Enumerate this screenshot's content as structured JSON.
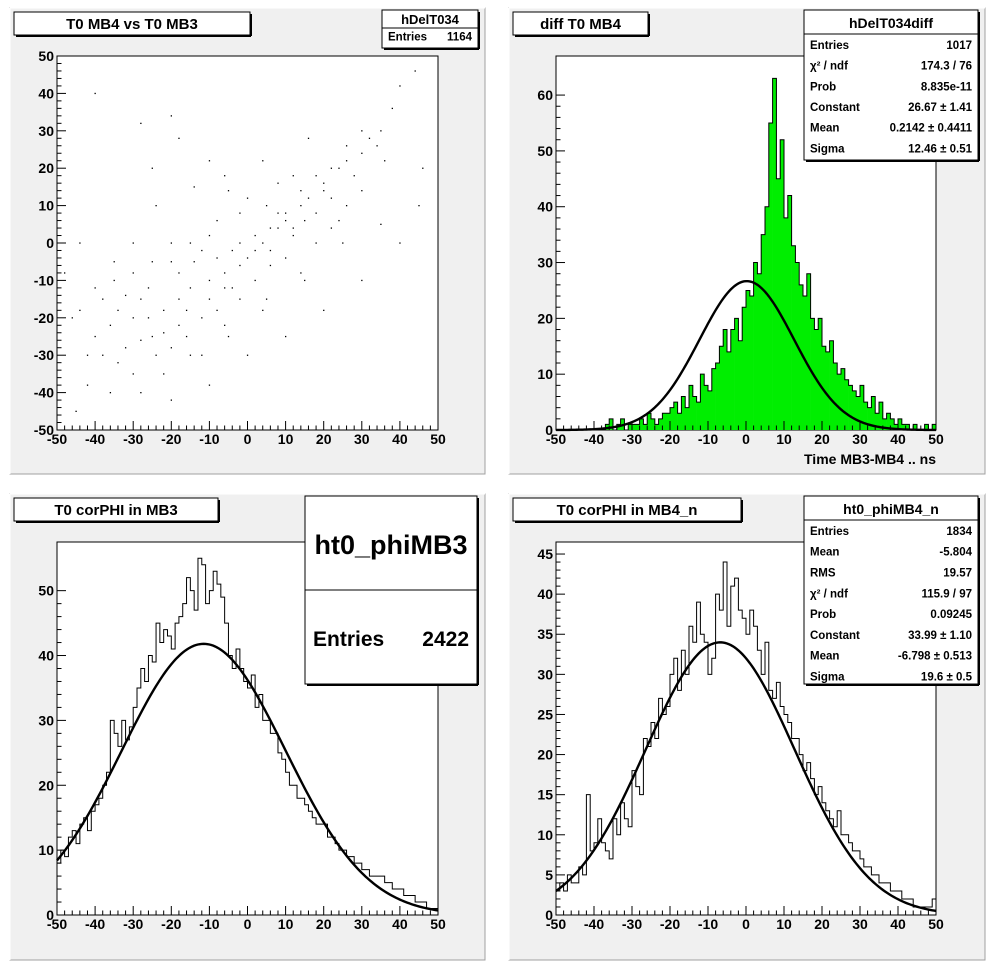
{
  "pads": [
    {
      "title": "T0 MB4 vs T0 MB3",
      "stats": {
        "title": "hDelT034",
        "rows": [
          {
            "label": "Entries",
            "value": "1164"
          }
        ]
      },
      "xlabel": "",
      "chart_data": {
        "type": "scatter",
        "title": "T0 MB4 vs T0 MB3",
        "xlim": [
          -50,
          50
        ],
        "ylim": [
          -50,
          50
        ],
        "xticks": [
          -50,
          -40,
          -30,
          -20,
          -10,
          0,
          10,
          20,
          30,
          40,
          50
        ],
        "yticks": [
          -50,
          -40,
          -30,
          -20,
          -10,
          0,
          10,
          20,
          30,
          40,
          50
        ],
        "xlabel": "",
        "ylabel": "",
        "points": [
          [
            -40,
            40
          ],
          [
            -28,
            32
          ],
          [
            -25,
            20
          ],
          [
            -20,
            34
          ],
          [
            -18,
            28
          ],
          [
            -10,
            22
          ],
          [
            -5,
            14
          ],
          [
            0,
            12
          ],
          [
            5,
            10
          ],
          [
            8,
            8
          ],
          [
            12,
            4
          ],
          [
            15,
            6
          ],
          [
            20,
            14
          ],
          [
            24,
            20
          ],
          [
            26,
            22
          ],
          [
            28,
            18
          ],
          [
            30,
            24
          ],
          [
            32,
            28
          ],
          [
            35,
            30
          ],
          [
            38,
            36
          ],
          [
            40,
            42
          ],
          [
            44,
            46
          ],
          [
            -35,
            -10
          ],
          [
            -30,
            -20
          ],
          [
            -30,
            -35
          ],
          [
            -28,
            -40
          ],
          [
            -25,
            -25
          ],
          [
            -22,
            -18
          ],
          [
            -20,
            -28
          ],
          [
            -18,
            -15
          ],
          [
            -15,
            -12
          ],
          [
            -12,
            -20
          ],
          [
            -10,
            -10
          ],
          [
            -8,
            -4
          ],
          [
            -6,
            -8
          ],
          [
            -4,
            -2
          ],
          [
            -2,
            0
          ],
          [
            0,
            -4
          ],
          [
            2,
            2
          ],
          [
            4,
            0
          ],
          [
            6,
            -6
          ],
          [
            8,
            4
          ],
          [
            10,
            8
          ],
          [
            12,
            2
          ],
          [
            14,
            10
          ],
          [
            16,
            12
          ],
          [
            18,
            8
          ],
          [
            20,
            16
          ],
          [
            22,
            12
          ],
          [
            24,
            6
          ],
          [
            -45,
            -45
          ],
          [
            -42,
            -38
          ],
          [
            -40,
            -25
          ],
          [
            -38,
            -30
          ],
          [
            -36,
            -22
          ],
          [
            -34,
            -18
          ],
          [
            -32,
            -28
          ],
          [
            -26,
            -12
          ],
          [
            -24,
            -30
          ],
          [
            -22,
            -35
          ],
          [
            -16,
            -25
          ],
          [
            -14,
            -5
          ],
          [
            -12,
            -30
          ],
          [
            -8,
            -18
          ],
          [
            -6,
            -22
          ],
          [
            -4,
            -12
          ],
          [
            -2,
            -15
          ],
          [
            2,
            -10
          ],
          [
            4,
            -18
          ],
          [
            6,
            -2
          ],
          [
            10,
            -4
          ],
          [
            14,
            -8
          ],
          [
            18,
            0
          ],
          [
            22,
            4
          ],
          [
            26,
            10
          ],
          [
            30,
            14
          ],
          [
            -20,
            -5
          ],
          [
            -18,
            -8
          ],
          [
            -15,
            0
          ],
          [
            -10,
            2
          ],
          [
            -30,
            -8
          ],
          [
            -28,
            -15
          ],
          [
            -44,
            0
          ],
          [
            -40,
            -12
          ],
          [
            -46,
            -20
          ],
          [
            -48,
            -8
          ],
          [
            -36,
            -40
          ],
          [
            -20,
            -42
          ],
          [
            -10,
            -38
          ],
          [
            0,
            -30
          ],
          [
            10,
            -25
          ],
          [
            20,
            -18
          ],
          [
            30,
            -10
          ],
          [
            40,
            0
          ],
          [
            46,
            20
          ],
          [
            45,
            10
          ],
          [
            35,
            5
          ],
          [
            -24,
            10
          ],
          [
            -14,
            15
          ],
          [
            -6,
            18
          ],
          [
            4,
            22
          ],
          [
            16,
            28
          ],
          [
            12,
            18
          ],
          [
            8,
            16
          ],
          [
            -2,
            8
          ],
          [
            -8,
            6
          ],
          [
            -12,
            -2
          ],
          [
            -18,
            -22
          ],
          [
            -26,
            -20
          ],
          [
            -32,
            -14
          ],
          [
            -38,
            -15
          ],
          [
            -42,
            -30
          ],
          [
            -34,
            -32
          ],
          [
            -28,
            -26
          ],
          [
            -22,
            -24
          ],
          [
            -16,
            -18
          ],
          [
            -10,
            -15
          ],
          [
            -6,
            -12
          ],
          [
            -2,
            -6
          ],
          [
            2,
            -2
          ],
          [
            6,
            4
          ],
          [
            10,
            6
          ],
          [
            14,
            14
          ],
          [
            18,
            18
          ],
          [
            22,
            20
          ],
          [
            26,
            26
          ],
          [
            30,
            30
          ],
          [
            34,
            26
          ],
          [
            36,
            22
          ],
          [
            -25,
            -5
          ],
          [
            -15,
            -30
          ],
          [
            -5,
            -25
          ],
          [
            5,
            -15
          ],
          [
            15,
            -10
          ],
          [
            25,
            0
          ],
          [
            -20,
            0
          ],
          [
            -30,
            0
          ],
          [
            -35,
            -5
          ],
          [
            -44,
            -18
          ]
        ],
        "point_count": 1164
      }
    },
    {
      "title": "diff T0 MB4",
      "stats": {
        "title": "hDelT034diff",
        "rows": [
          {
            "label": "Entries",
            "value": "1017"
          },
          {
            "label": "χ² / ndf",
            "value": "174.3 / 76"
          },
          {
            "label": "Prob",
            "value": "8.835e-11"
          },
          {
            "label": "Constant",
            "value": "26.67 ± 1.41"
          },
          {
            "label": "Mean",
            "value": "0.2142 ± 0.4411"
          },
          {
            "label": "Sigma",
            "value": "12.46 ± 0.51"
          }
        ]
      },
      "xlabel": "Time MB3-MB4  ..  ns",
      "chart_data": {
        "type": "bar",
        "title": "diff T0 MB4",
        "xlim": [
          -50,
          50
        ],
        "ylim": [
          0,
          67
        ],
        "xticks": [
          -50,
          -40,
          -30,
          -20,
          -10,
          0,
          10,
          20,
          30,
          40,
          50
        ],
        "yticks": [
          0,
          10,
          20,
          30,
          40,
          50,
          60
        ],
        "xlabel": "Time MB3-MB4  ..  ns",
        "ylabel": "",
        "bin_width": 1,
        "fill": "#00ee00",
        "values": [
          0,
          0,
          0,
          0,
          0,
          0,
          0,
          0,
          0,
          0,
          0,
          0,
          0,
          1,
          2,
          0,
          1,
          2,
          0,
          1,
          1,
          1,
          2,
          1,
          3,
          2,
          1,
          2,
          3,
          3,
          4,
          5,
          3,
          6,
          4,
          8,
          6,
          5,
          10,
          8,
          7,
          11,
          12,
          15,
          18,
          14,
          18,
          20,
          16,
          22,
          25,
          24,
          30,
          28,
          35,
          40,
          55,
          63,
          45,
          52,
          38,
          42,
          33,
          30,
          26,
          24,
          28,
          20,
          18,
          20,
          15,
          14,
          16,
          12,
          10,
          11,
          9,
          8,
          7,
          6,
          8,
          5,
          4,
          6,
          3,
          5,
          2,
          3,
          2,
          1,
          2,
          1,
          1,
          0,
          1,
          0,
          0,
          1,
          0,
          1
        ],
        "fit": {
          "constant": 26.67,
          "mean": 0.2142,
          "sigma": 12.46
        }
      }
    },
    {
      "title": "T0 corPHI in MB3",
      "stats": {
        "title": "ht0_phiMB3",
        "rows": [
          {
            "label": "Entries",
            "value": "2422"
          }
        ]
      },
      "xlabel": "",
      "chart_data": {
        "type": "bar",
        "title": "T0 corPHI in MB3",
        "xlim": [
          -50,
          50
        ],
        "ylim": [
          0,
          57.5
        ],
        "xticks": [
          -50,
          -40,
          -30,
          -20,
          -10,
          0,
          10,
          20,
          30,
          40,
          50
        ],
        "yticks": [
          0,
          10,
          20,
          30,
          40,
          50
        ],
        "xlabel": "",
        "ylabel": "",
        "bin_width": 1,
        "values": [
          8,
          10,
          9,
          12,
          13,
          11,
          14,
          15,
          13,
          16,
          17,
          18,
          20,
          22,
          30,
          28,
          26,
          30,
          27,
          29,
          32,
          35,
          38,
          36,
          40,
          39,
          45,
          42,
          44,
          43,
          41,
          45,
          46,
          48,
          52,
          50,
          47,
          55,
          54,
          48,
          50,
          53,
          51,
          49,
          45,
          40,
          38,
          41,
          38,
          36,
          35,
          37,
          32,
          34,
          30,
          30,
          28,
          28,
          25,
          24,
          22,
          20,
          20,
          18,
          18,
          17,
          16,
          15,
          14,
          14,
          14,
          12,
          12,
          11,
          10,
          10,
          9,
          9,
          8,
          8,
          7,
          7,
          6,
          6,
          6,
          6,
          5,
          5,
          4,
          4,
          4,
          3,
          3,
          3,
          2,
          2,
          2,
          1,
          1,
          1
        ],
        "fit": {
          "constant": 41.8,
          "mean": -11.5,
          "sigma": 21.5
        }
      }
    },
    {
      "title": "T0 corPHI in MB4_n",
      "stats": {
        "title": "ht0_phiMB4_n",
        "rows": [
          {
            "label": "Entries",
            "value": "1834"
          },
          {
            "label": "Mean",
            "value": "-5.804"
          },
          {
            "label": "RMS",
            "value": "19.57"
          },
          {
            "label": "χ² / ndf",
            "value": "115.9 / 97"
          },
          {
            "label": "Prob",
            "value": "0.09245"
          },
          {
            "label": "Constant",
            "value": "33.99 ± 1.10"
          },
          {
            "label": "Mean",
            "value": "-6.798 ± 0.513"
          },
          {
            "label": "Sigma",
            "value": "19.6 ± 0.5"
          }
        ]
      },
      "xlabel": "",
      "chart_data": {
        "type": "bar",
        "title": "T0 corPHI in MB4_n",
        "xlim": [
          -50,
          50
        ],
        "ylim": [
          0,
          46.5
        ],
        "xticks": [
          -50,
          -40,
          -30,
          -20,
          -10,
          0,
          10,
          20,
          30,
          40,
          50
        ],
        "yticks": [
          0,
          5,
          10,
          15,
          20,
          25,
          30,
          35,
          40,
          45
        ],
        "xlabel": "",
        "ylabel": "",
        "bin_width": 1,
        "values": [
          3,
          4,
          3,
          5,
          4,
          4,
          6,
          5,
          15,
          8,
          9,
          12,
          9,
          8,
          7,
          12,
          10,
          14,
          12,
          11,
          18,
          16,
          15,
          22,
          21,
          24,
          22,
          27,
          25,
          26,
          30,
          32,
          28,
          33,
          30,
          36,
          34,
          39,
          35,
          34,
          30,
          32,
          40,
          38,
          44,
          36,
          41,
          42,
          38,
          37,
          35,
          38,
          36,
          33,
          30,
          34,
          28,
          27,
          29,
          26,
          25,
          24,
          22,
          22,
          20,
          18,
          19,
          17,
          15,
          16,
          14,
          13,
          12,
          11,
          13,
          10,
          10,
          9,
          8,
          8,
          7,
          6,
          6,
          5,
          5,
          4,
          4,
          4,
          3,
          3,
          3,
          2,
          2,
          2,
          1,
          1,
          1,
          1,
          1,
          2
        ],
        "fit": {
          "constant": 33.99,
          "mean": -6.798,
          "sigma": 19.6
        }
      }
    }
  ]
}
